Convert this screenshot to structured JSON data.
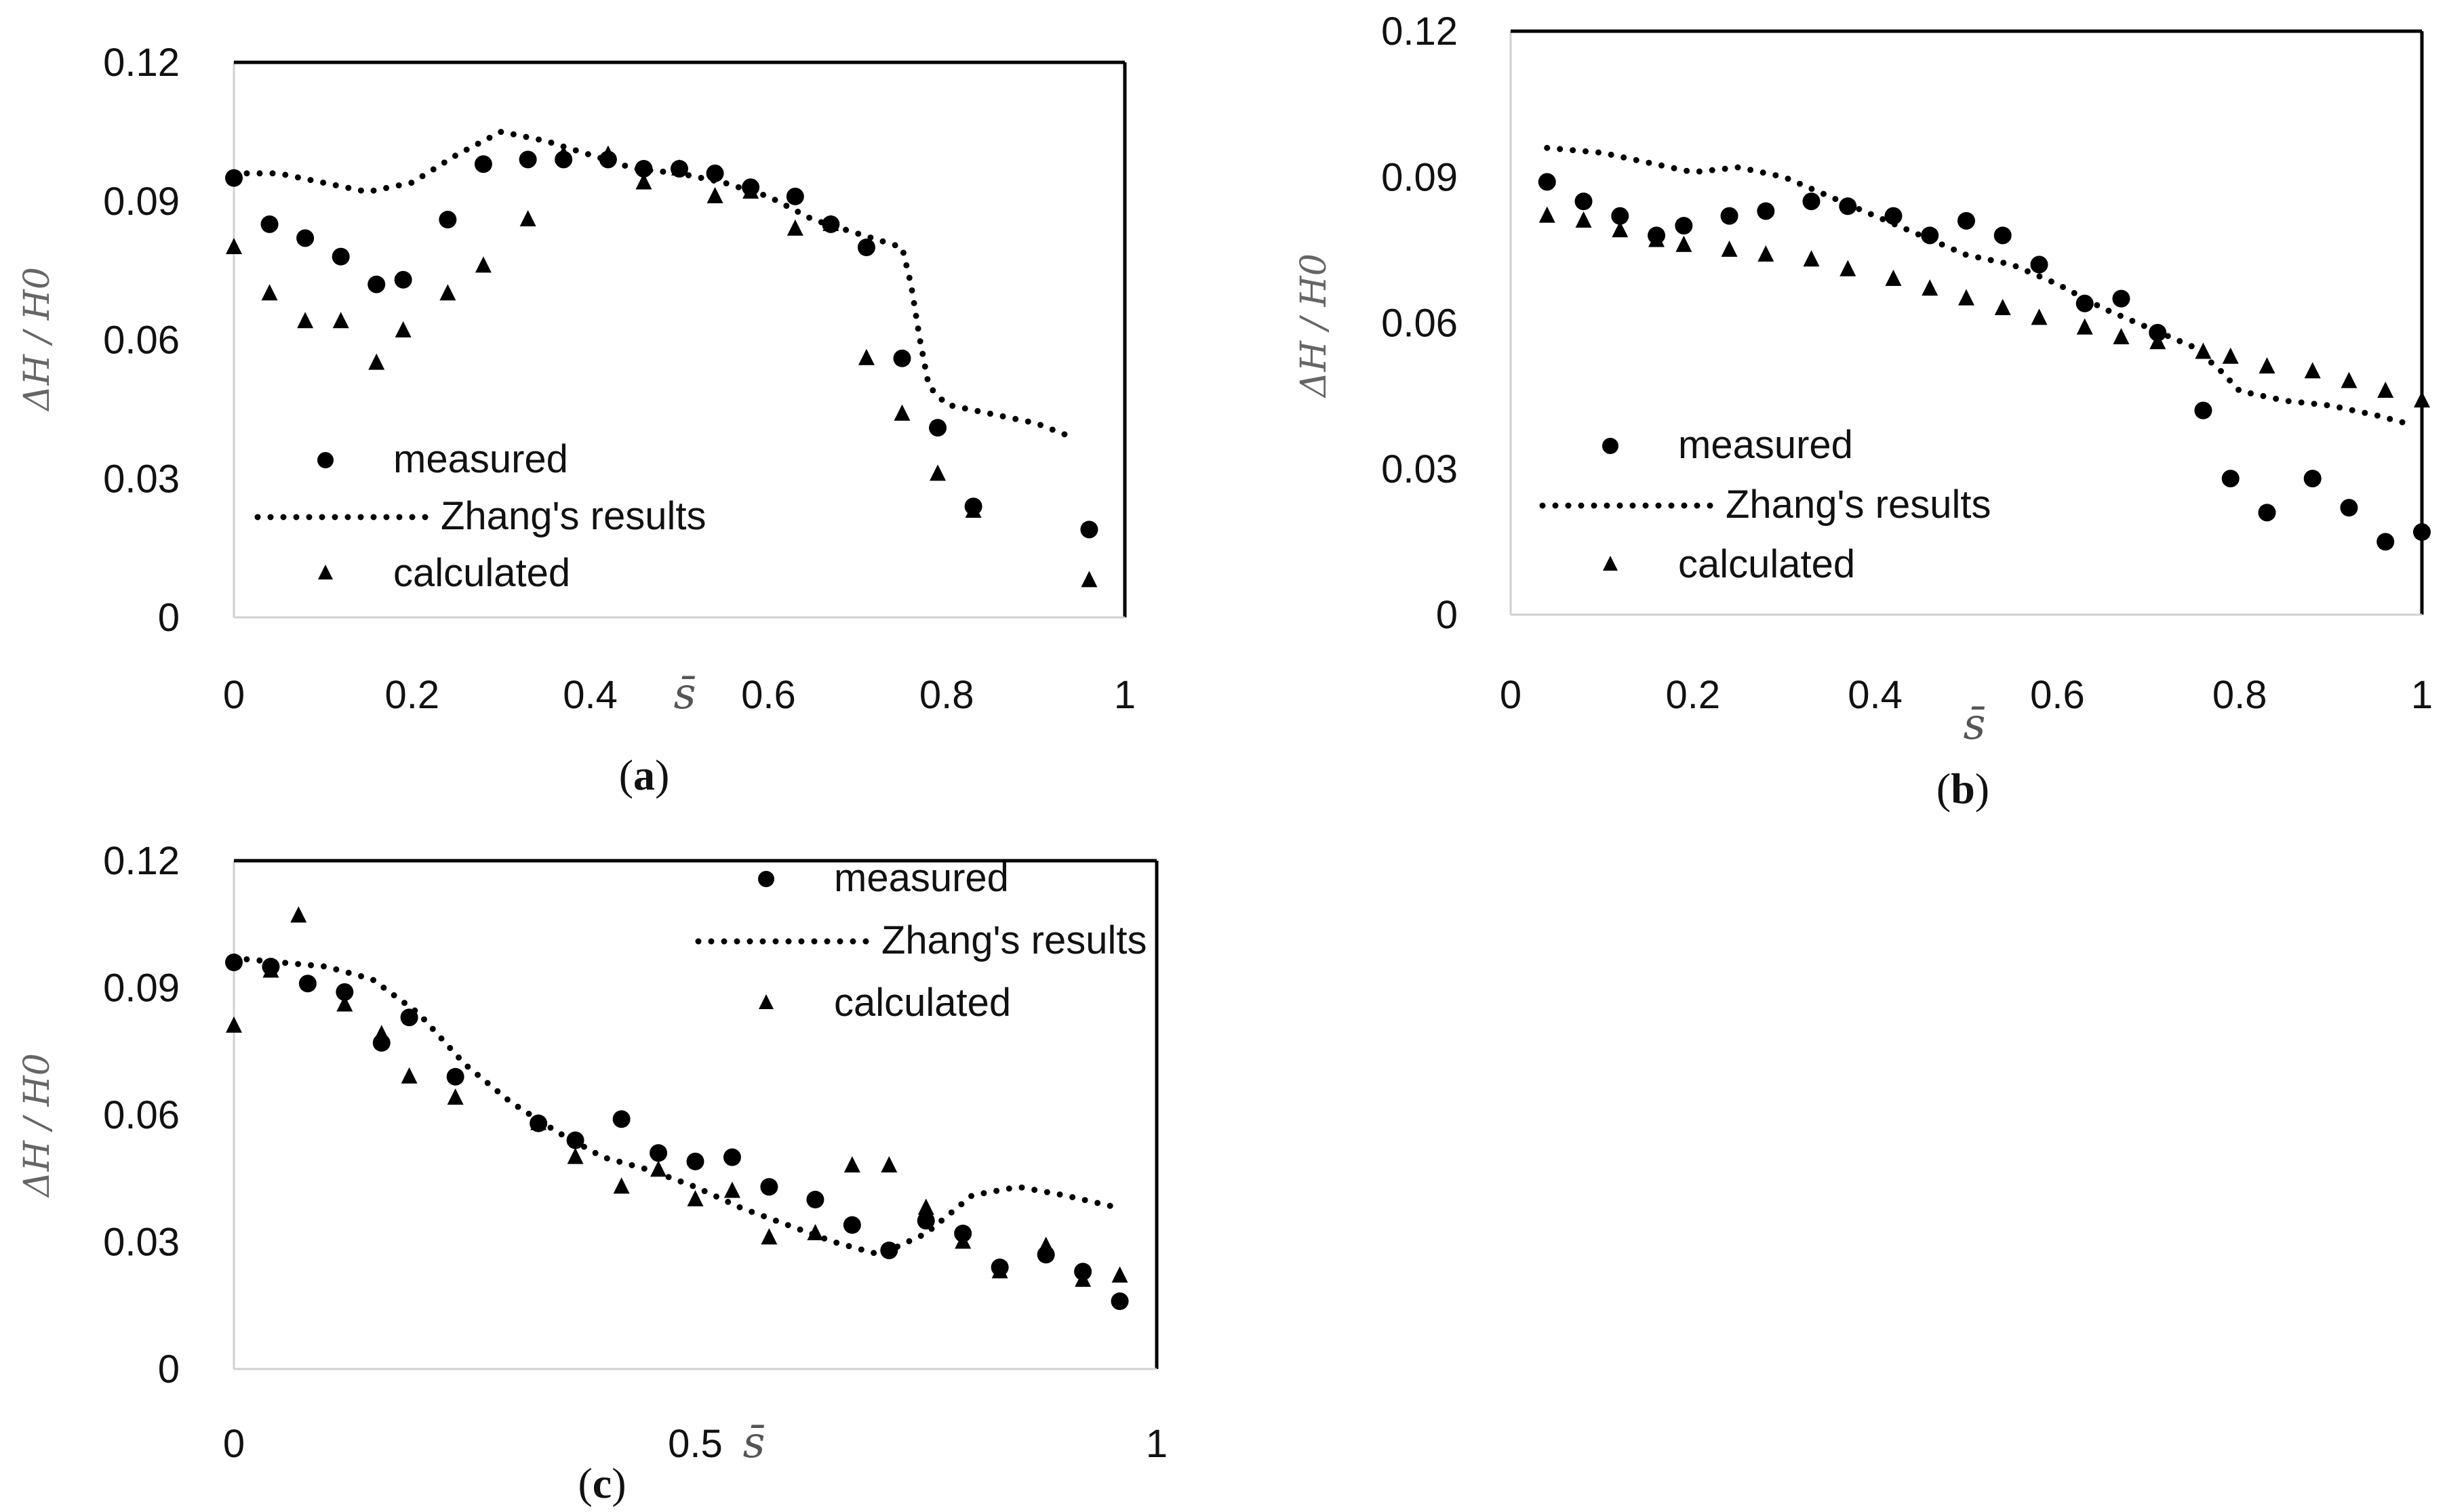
{
  "figure": {
    "panels": [
      {
        "id": "a",
        "caption": "a"
      },
      {
        "id": "b",
        "caption": "b"
      },
      {
        "id": "c",
        "caption": "c"
      }
    ]
  },
  "chart_data": [
    {
      "panel": "a",
      "type": "scatter",
      "title": "",
      "xlabel": "s̄",
      "ylabel": "ΔH / H0",
      "xlim": [
        0,
        1
      ],
      "ylim": [
        0,
        0.12
      ],
      "xticks": [
        "0",
        "0.2",
        "0.4",
        "0.6",
        "0.8",
        "1"
      ],
      "yticks": [
        "0",
        "0.03",
        "0.06",
        "0.09",
        "0.12"
      ],
      "legend": {
        "position": "bottom-left",
        "entries": [
          "measured",
          "Zhang's results",
          "calculated"
        ]
      },
      "series": [
        {
          "name": "measured",
          "marker": "circle",
          "x": [
            0,
            0.04,
            0.08,
            0.12,
            0.16,
            0.19,
            0.24,
            0.28,
            0.33,
            0.37,
            0.42,
            0.46,
            0.5,
            0.54,
            0.58,
            0.63,
            0.67,
            0.71,
            0.75,
            0.79,
            0.83,
            0.96
          ],
          "y": [
            0.095,
            0.085,
            0.082,
            0.078,
            0.072,
            0.073,
            0.086,
            0.098,
            0.099,
            0.099,
            0.099,
            0.097,
            0.097,
            0.096,
            0.093,
            0.091,
            0.085,
            0.08,
            0.056,
            0.041,
            0.024,
            0.019
          ]
        },
        {
          "name": "Zhang's results",
          "marker": "dotted-line",
          "x": [
            0,
            0.05,
            0.1,
            0.15,
            0.2,
            0.25,
            0.3,
            0.35,
            0.4,
            0.45,
            0.5,
            0.55,
            0.6,
            0.65,
            0.7,
            0.75,
            0.76,
            0.77,
            0.78,
            0.8,
            0.85,
            0.9,
            0.94
          ],
          "y": [
            0.096,
            0.096,
            0.094,
            0.092,
            0.094,
            0.1,
            0.105,
            0.103,
            0.1,
            0.097,
            0.096,
            0.094,
            0.091,
            0.086,
            0.083,
            0.08,
            0.072,
            0.06,
            0.05,
            0.046,
            0.044,
            0.042,
            0.039
          ]
        },
        {
          "name": "calculated",
          "marker": "triangle",
          "x": [
            0,
            0.04,
            0.08,
            0.12,
            0.16,
            0.19,
            0.24,
            0.28,
            0.33,
            0.37,
            0.42,
            0.46,
            0.5,
            0.54,
            0.58,
            0.63,
            0.67,
            0.71,
            0.75,
            0.79,
            0.83,
            0.96
          ],
          "y": [
            0.08,
            0.07,
            0.064,
            0.064,
            0.055,
            0.062,
            0.07,
            0.076,
            0.086,
            0.1,
            0.1,
            0.094,
            0.097,
            0.091,
            0.092,
            0.084,
            0.085,
            0.056,
            0.044,
            0.031,
            0.023,
            0.008
          ]
        }
      ]
    },
    {
      "panel": "b",
      "type": "scatter",
      "title": "",
      "xlabel": "s̄",
      "ylabel": "ΔH / H0",
      "xlim": [
        0,
        1
      ],
      "ylim": [
        0,
        0.12
      ],
      "xticks": [
        "0",
        "0.2",
        "0.4",
        "0.6",
        "0.8",
        "1"
      ],
      "yticks": [
        "0",
        "0.03",
        "0.06",
        "0.09",
        "0.12"
      ],
      "legend": {
        "position": "bottom-left",
        "entries": [
          "measured",
          "Zhang's results",
          "calculated"
        ]
      },
      "series": [
        {
          "name": "measured",
          "marker": "circle",
          "x": [
            0.04,
            0.08,
            0.12,
            0.16,
            0.19,
            0.24,
            0.28,
            0.33,
            0.37,
            0.42,
            0.46,
            0.5,
            0.54,
            0.58,
            0.63,
            0.67,
            0.71,
            0.76,
            0.79,
            0.83,
            0.88,
            0.92,
            0.96,
            1.0
          ],
          "y": [
            0.089,
            0.085,
            0.082,
            0.078,
            0.08,
            0.082,
            0.083,
            0.085,
            0.084,
            0.082,
            0.078,
            0.081,
            0.078,
            0.072,
            0.064,
            0.065,
            0.058,
            0.042,
            0.028,
            0.021,
            0.028,
            0.022,
            0.015,
            0.017
          ]
        },
        {
          "name": "Zhang's results",
          "marker": "dotted-line",
          "x": [
            0.04,
            0.1,
            0.15,
            0.2,
            0.25,
            0.3,
            0.35,
            0.4,
            0.45,
            0.5,
            0.55,
            0.6,
            0.65,
            0.7,
            0.75,
            0.78,
            0.8,
            0.85,
            0.9,
            0.95,
            0.99
          ],
          "y": [
            0.096,
            0.095,
            0.093,
            0.091,
            0.092,
            0.09,
            0.086,
            0.082,
            0.078,
            0.074,
            0.072,
            0.068,
            0.063,
            0.059,
            0.055,
            0.05,
            0.046,
            0.044,
            0.043,
            0.041,
            0.039
          ]
        },
        {
          "name": "calculated",
          "marker": "triangle",
          "x": [
            0.04,
            0.08,
            0.12,
            0.16,
            0.19,
            0.24,
            0.28,
            0.33,
            0.37,
            0.42,
            0.46,
            0.5,
            0.54,
            0.58,
            0.63,
            0.67,
            0.71,
            0.76,
            0.79,
            0.83,
            0.88,
            0.92,
            0.96,
            1.0
          ],
          "y": [
            0.082,
            0.081,
            0.079,
            0.077,
            0.076,
            0.075,
            0.074,
            0.073,
            0.071,
            0.069,
            0.067,
            0.065,
            0.063,
            0.061,
            0.059,
            0.057,
            0.056,
            0.054,
            0.053,
            0.051,
            0.05,
            0.048,
            0.046,
            0.044
          ]
        }
      ]
    },
    {
      "panel": "c",
      "type": "scatter",
      "title": "",
      "xlabel": "s̄",
      "ylabel": "ΔH / H0",
      "xlim": [
        0,
        1
      ],
      "ylim": [
        0,
        0.12
      ],
      "xticks": [
        "0",
        "0.5",
        "1"
      ],
      "yticks": [
        "0",
        "0.03",
        "0.06",
        "0.09",
        "0.12"
      ],
      "legend": {
        "position": "top-right",
        "entries": [
          "measured",
          "Zhang's results",
          "calculated"
        ]
      },
      "series": [
        {
          "name": "measured",
          "marker": "circle",
          "x": [
            0,
            0.04,
            0.08,
            0.12,
            0.16,
            0.19,
            0.24,
            0.33,
            0.37,
            0.42,
            0.46,
            0.5,
            0.54,
            0.58,
            0.63,
            0.67,
            0.71,
            0.75,
            0.79,
            0.83,
            0.88,
            0.92,
            0.96
          ],
          "y": [
            0.096,
            0.095,
            0.091,
            0.089,
            0.077,
            0.083,
            0.069,
            0.058,
            0.054,
            0.059,
            0.051,
            0.049,
            0.05,
            0.043,
            0.04,
            0.034,
            0.028,
            0.035,
            0.032,
            0.024,
            0.027,
            0.023,
            0.016
          ]
        },
        {
          "name": "Zhang's results",
          "marker": "dotted-line",
          "x": [
            0,
            0.05,
            0.1,
            0.15,
            0.2,
            0.25,
            0.3,
            0.35,
            0.4,
            0.45,
            0.5,
            0.55,
            0.6,
            0.65,
            0.7,
            0.75,
            0.8,
            0.85,
            0.9,
            0.96
          ],
          "y": [
            0.097,
            0.096,
            0.095,
            0.092,
            0.084,
            0.072,
            0.063,
            0.056,
            0.05,
            0.047,
            0.043,
            0.038,
            0.034,
            0.03,
            0.027,
            0.032,
            0.041,
            0.043,
            0.041,
            0.038
          ]
        },
        {
          "name": "calculated",
          "marker": "triangle",
          "x": [
            0,
            0.04,
            0.07,
            0.12,
            0.16,
            0.19,
            0.24,
            0.33,
            0.37,
            0.42,
            0.46,
            0.5,
            0.54,
            0.58,
            0.63,
            0.67,
            0.71,
            0.75,
            0.79,
            0.83,
            0.88,
            0.92,
            0.96
          ],
          "y": [
            0.081,
            0.094,
            0.107,
            0.086,
            0.079,
            0.069,
            0.064,
            0.058,
            0.05,
            0.043,
            0.047,
            0.04,
            0.042,
            0.031,
            0.032,
            0.048,
            0.048,
            0.038,
            0.03,
            0.023,
            0.029,
            0.021,
            0.022
          ]
        }
      ]
    }
  ]
}
